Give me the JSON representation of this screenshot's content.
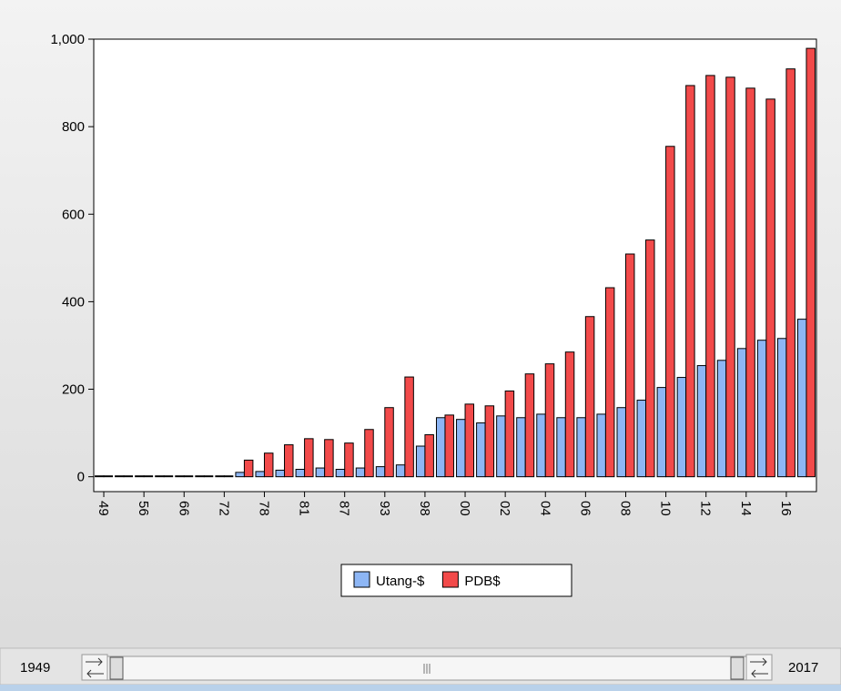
{
  "chart_data": {
    "type": "bar",
    "categories": [
      "49",
      null,
      "56",
      null,
      "66",
      null,
      "72",
      null,
      "78",
      null,
      "81",
      null,
      "87",
      null,
      "93",
      null,
      "98",
      null,
      "00",
      null,
      "02",
      null,
      "04",
      null,
      "06",
      null,
      "08",
      null,
      "10",
      null,
      "12",
      null,
      "14",
      null,
      "16",
      null
    ],
    "series": [
      {
        "name": "Utang-$",
        "color": "#8db6f5",
        "values": [
          2,
          2,
          2,
          2,
          2,
          2,
          2,
          10,
          12,
          15,
          17,
          20,
          17,
          20,
          23,
          27,
          70,
          135,
          131,
          123,
          139,
          135,
          143,
          135,
          135,
          143,
          158,
          175,
          204,
          227,
          254,
          266,
          293,
          312,
          316,
          360
        ]
      },
      {
        "name": "PDB$",
        "color": "#f24a4a",
        "values": [
          2,
          2,
          2,
          2,
          2,
          2,
          2,
          38,
          54,
          73,
          87,
          85,
          77,
          108,
          158,
          228,
          96,
          141,
          166,
          162,
          196,
          235,
          258,
          285,
          366,
          432,
          509,
          541,
          755,
          894,
          917,
          913,
          888,
          863,
          932,
          979
        ]
      }
    ],
    "ylim": [
      -34,
      1000
    ],
    "yticks": [
      0,
      200,
      400,
      600,
      800,
      {
        "value": 1000,
        "label": "1,000"
      }
    ],
    "slider": {
      "start": "1949",
      "end": "2017"
    }
  }
}
